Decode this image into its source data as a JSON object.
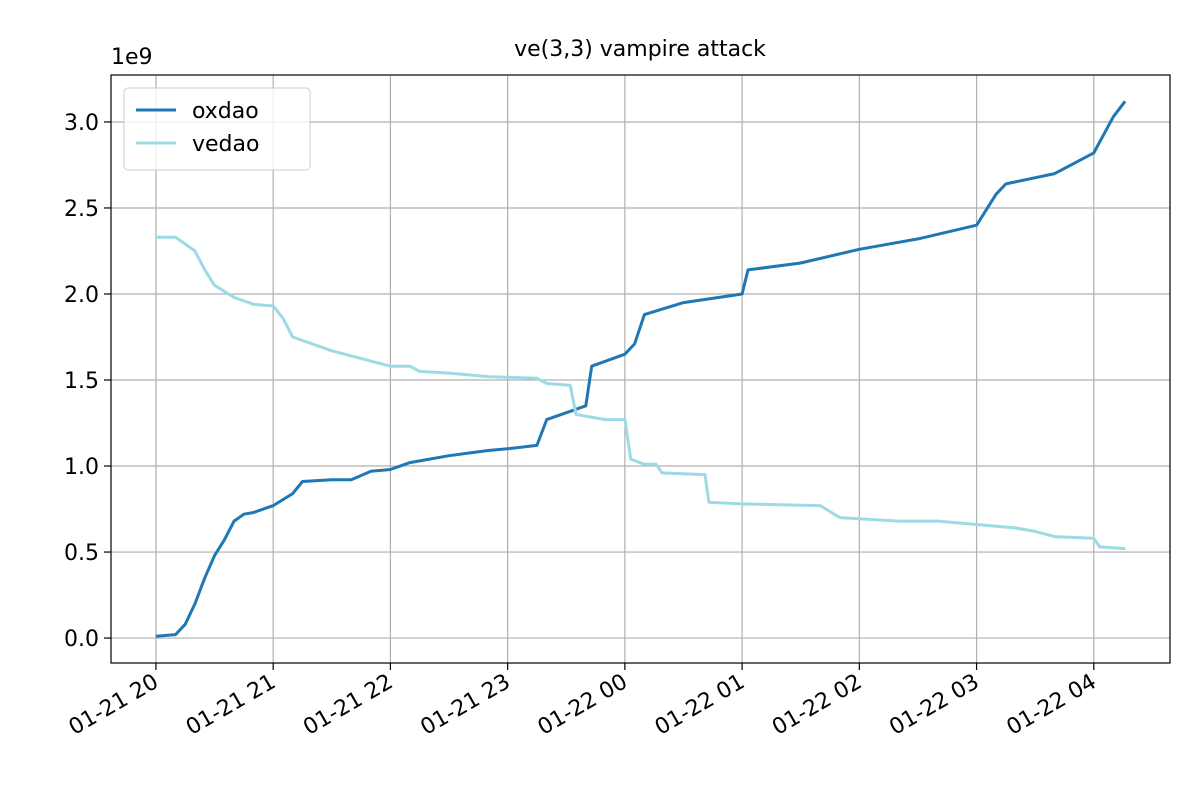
{
  "chart_data": {
    "type": "line",
    "title": "ve(3,3) vampire attack",
    "y_offset_label": "1e9",
    "xlim": [
      "01-21 19:37",
      "01-22 04:39"
    ],
    "xticks": [
      {
        "value": "01-21 20:00",
        "label": "01-21 20"
      },
      {
        "value": "01-21 21:00",
        "label": "01-21 21"
      },
      {
        "value": "01-21 22:00",
        "label": "01-21 22"
      },
      {
        "value": "01-21 23:00",
        "label": "01-21 23"
      },
      {
        "value": "01-22 00:00",
        "label": "01-22 00"
      },
      {
        "value": "01-22 01:00",
        "label": "01-22 01"
      },
      {
        "value": "01-22 02:00",
        "label": "01-22 02"
      },
      {
        "value": "01-22 03:00",
        "label": "01-22 03"
      },
      {
        "value": "01-22 04:00",
        "label": "01-22 04"
      }
    ],
    "ylim": [
      -0.145,
      3.273
    ],
    "yticks": [
      {
        "value": 0,
        "label": "0.0"
      },
      0.5,
      {
        "value": 1,
        "label": "1.0"
      },
      1.5,
      {
        "value": 2,
        "label": "2.0"
      },
      2.5,
      {
        "value": 3,
        "label": "3.0"
      }
    ],
    "grid": true,
    "legend": "upper left",
    "series": [
      {
        "name": "oxdao",
        "color": "#1f77b4",
        "x": [
          "01-21 20:00",
          "01-21 20:10",
          "01-21 20:15",
          "01-21 20:20",
          "01-21 20:25",
          "01-21 20:30",
          "01-21 20:35",
          "01-21 20:40",
          "01-21 20:45",
          "01-21 20:50",
          "01-21 21:00",
          "01-21 21:10",
          "01-21 21:15",
          "01-21 21:30",
          "01-21 21:40",
          "01-21 21:50",
          "01-21 22:00",
          "01-21 22:10",
          "01-21 22:30",
          "01-21 22:50",
          "01-21 23:00",
          "01-21 23:15",
          "01-21 23:20",
          "01-21 23:35",
          "01-21 23:40",
          "01-21 23:43",
          "01-22 00:00",
          "01-22 00:05",
          "01-22 00:10",
          "01-22 00:30",
          "01-22 01:00",
          "01-22 01:03",
          "01-22 01:30",
          "01-22 02:00",
          "01-22 02:30",
          "01-22 03:00",
          "01-22 03:10",
          "01-22 03:15",
          "01-22 03:40",
          "01-22 04:00",
          "01-22 04:10",
          "01-22 04:16"
        ],
        "values": [
          0.01,
          0.02,
          0.08,
          0.2,
          0.35,
          0.48,
          0.57,
          0.68,
          0.72,
          0.73,
          0.77,
          0.84,
          0.91,
          0.92,
          0.92,
          0.97,
          0.98,
          1.02,
          1.06,
          1.09,
          1.1,
          1.12,
          1.27,
          1.33,
          1.35,
          1.58,
          1.65,
          1.71,
          1.88,
          1.95,
          2.0,
          2.14,
          2.18,
          2.26,
          2.32,
          2.4,
          2.58,
          2.64,
          2.7,
          2.82,
          3.03,
          3.12
        ]
      },
      {
        "name": "vedao",
        "color": "#9edae5",
        "x": [
          "01-21 20:00",
          "01-21 20:10",
          "01-21 20:20",
          "01-21 20:25",
          "01-21 20:30",
          "01-21 20:40",
          "01-21 20:50",
          "01-21 21:00",
          "01-21 21:05",
          "01-21 21:10",
          "01-21 21:30",
          "01-21 21:50",
          "01-21 22:00",
          "01-21 22:10",
          "01-21 22:15",
          "01-21 22:30",
          "01-21 22:50",
          "01-21 23:15",
          "01-21 23:20",
          "01-21 23:32",
          "01-21 23:35",
          "01-21 23:50",
          "01-22 00:00",
          "01-22 00:03",
          "01-22 00:10",
          "01-22 00:16",
          "01-22 00:19",
          "01-22 00:41",
          "01-22 00:43",
          "01-22 01:00",
          "01-22 01:40",
          "01-22 01:50",
          "01-22 02:20",
          "01-22 02:40",
          "01-22 03:00",
          "01-22 03:20",
          "01-22 03:30",
          "01-22 03:40",
          "01-22 04:00",
          "01-22 04:03",
          "01-22 04:16"
        ],
        "values": [
          2.33,
          2.33,
          2.25,
          2.14,
          2.05,
          1.98,
          1.94,
          1.93,
          1.86,
          1.75,
          1.67,
          1.61,
          1.58,
          1.58,
          1.55,
          1.54,
          1.52,
          1.51,
          1.48,
          1.47,
          1.3,
          1.27,
          1.27,
          1.04,
          1.01,
          1.01,
          0.96,
          0.95,
          0.79,
          0.78,
          0.77,
          0.7,
          0.68,
          0.68,
          0.66,
          0.64,
          0.62,
          0.59,
          0.58,
          0.53,
          0.52
        ]
      }
    ]
  }
}
